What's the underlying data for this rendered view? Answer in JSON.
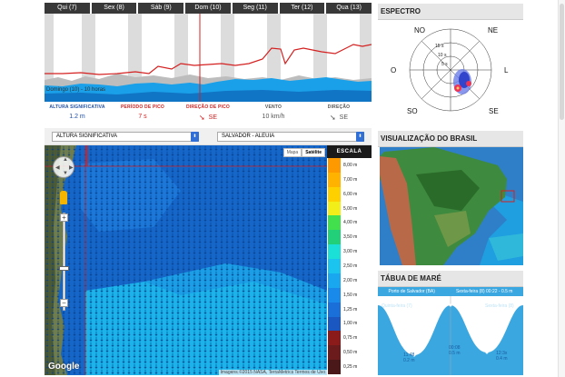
{
  "forecast": {
    "days": [
      "Qui (7)",
      "Sex (8)",
      "Sáb (9)",
      "Dom (10)",
      "Seg (11)",
      "Ter (12)",
      "Qua (13)"
    ],
    "time_label": "Domingo (10) - 10 horas",
    "metrics": [
      {
        "title": "ALTURA SIGNIFICATIVA",
        "value": "1.2 m",
        "color": "#1f4fa8"
      },
      {
        "title": "PERÍODO DE PICO",
        "value": "7 s",
        "color": "#d42020"
      },
      {
        "title": "DIREÇÃO DE PICO",
        "value": "SE",
        "color": "#d42020",
        "arrow": "➘"
      },
      {
        "title": "VENTO",
        "value": "10 km/h",
        "color": "#555555"
      },
      {
        "title": "DIREÇÃO",
        "value": "SE",
        "color": "#555555",
        "arrow": "➘"
      }
    ],
    "colors": {
      "wave": "#1aa0e8",
      "wave_dark": "#1075c4",
      "period_line": "#d42020",
      "cursor": "#d42020",
      "tab_bg": "#383838"
    }
  },
  "selects": {
    "variable": "ALTURA SIGNIFICATIVA",
    "location": "SALVADOR - ALEUIA"
  },
  "map": {
    "type_buttons": [
      "Mapa",
      "Satélite"
    ],
    "active_type": "Satélite",
    "logo": "Google",
    "credits": "Imagens ©2015 NASA, TerraMetrics   Termos de Uso"
  },
  "scale": {
    "title": "ESCALA",
    "labels": [
      "8,00 m",
      "7,00 m",
      "6,00 m",
      "5,00 m",
      "4,00 m",
      "3,50 m",
      "3,00 m",
      "2,50 m",
      "2,00 m",
      "1,50 m",
      "1,25 m",
      "1,00 m",
      "0,75 m",
      "0,50 m",
      "0,25 m"
    ],
    "colors": [
      "#ff9900",
      "#ffb300",
      "#ffd000",
      "#f2ee1a",
      "#43e04d",
      "#22d07a",
      "#1ae0d8",
      "#1ac4ef",
      "#19a8ef",
      "#1989ea",
      "#1a6fd8",
      "#1a57c0",
      "#8b1a1a",
      "#6b1b1b",
      "#4a1818"
    ]
  },
  "espectro": {
    "title": "ESPECTRO",
    "directions": [
      "NO",
      "NE",
      "O",
      "L",
      "SO",
      "SE"
    ],
    "rings": [
      "15 s",
      "10 s",
      "5 s"
    ]
  },
  "brasil": {
    "title": "VISUALIZAÇÃO DO BRASIL"
  },
  "mare": {
    "title": "TÁBUA DE MARÉ",
    "location": "Porto de Salvador (BA)",
    "next": "Sexta-feira (8) 00:22 - 0.5 m",
    "day_labels": [
      "Quinta-feira (7)",
      "Sexta-feira (8)"
    ],
    "points": [
      {
        "time": "11:48",
        "height": "0.2 m"
      },
      {
        "time": "00:08",
        "height": "0.5 m"
      },
      {
        "time": "12:3x",
        "height": "0.4 m"
      }
    ]
  }
}
